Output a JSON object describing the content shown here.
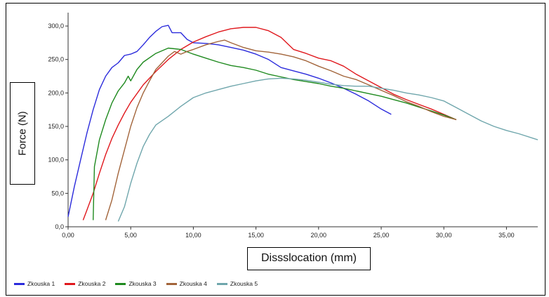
{
  "chart_data": {
    "type": "line",
    "title": "",
    "xlabel": "Dissslocation (mm)",
    "ylabel": "Force (N)",
    "xlim": [
      0,
      37.5
    ],
    "ylim": [
      0,
      320
    ],
    "grid": false,
    "legend_position": "bottom-left",
    "x_ticks": [
      "0,00",
      "5,00",
      "10,00",
      "15,00",
      "20,00",
      "25,00",
      "30,00",
      "35,00"
    ],
    "x_tick_values": [
      0,
      5,
      10,
      15,
      20,
      25,
      30,
      35
    ],
    "y_ticks": [
      "0,0",
      "50,0",
      "100,0",
      "150,0",
      "200,0",
      "250,0",
      "300,0"
    ],
    "y_tick_values": [
      0,
      50,
      100,
      150,
      200,
      250,
      300
    ],
    "series": [
      {
        "name": "Zkouska 1",
        "color": "#2b2bdc",
        "x": [
          0,
          0.5,
          1.0,
          1.5,
          2.0,
          2.5,
          3.0,
          3.5,
          4.0,
          4.5,
          5.0,
          5.5,
          6.0,
          6.5,
          7.0,
          7.5,
          8.0,
          8.3,
          9.0,
          9.5,
          10.0,
          11.0,
          12.0,
          13.0,
          14.0,
          15.0,
          16.0,
          17.0,
          18.0,
          19.0,
          20.0,
          21.0,
          22.0,
          23.0,
          24.0,
          25.0,
          25.8
        ],
        "y": [
          15,
          60,
          100,
          140,
          175,
          205,
          225,
          238,
          245,
          256,
          258,
          262,
          272,
          283,
          292,
          299,
          301,
          290,
          290,
          280,
          275,
          274,
          272,
          268,
          264,
          258,
          250,
          238,
          233,
          228,
          222,
          215,
          207,
          198,
          188,
          176,
          168
        ]
      },
      {
        "name": "Zkouska 2",
        "color": "#e0181d",
        "x": [
          1.2,
          1.5,
          2.0,
          2.5,
          3.0,
          3.5,
          4.0,
          4.5,
          5.0,
          6.0,
          7.0,
          8.0,
          9.0,
          10.0,
          11.0,
          12.0,
          13.0,
          14.0,
          15.0,
          16.0,
          17.0,
          18.0,
          19.0,
          20.0,
          21.0,
          22.0,
          23.0,
          24.0,
          25.0,
          26.0,
          27.0,
          28.0,
          29.0,
          30.0,
          31.0
        ],
        "y": [
          10,
          25,
          50,
          80,
          108,
          132,
          152,
          170,
          186,
          212,
          232,
          250,
          265,
          276,
          284,
          291,
          296,
          298,
          298,
          293,
          283,
          265,
          259,
          252,
          248,
          240,
          228,
          218,
          208,
          198,
          190,
          183,
          176,
          168,
          160
        ]
      },
      {
        "name": "Zkouska 3",
        "color": "#1f8a1f",
        "x": [
          2.0,
          2.05,
          2.1,
          2.5,
          3.0,
          3.5,
          4.0,
          4.5,
          4.8,
          5.0,
          5.5,
          6.0,
          7.0,
          8.0,
          9.0,
          10.0,
          11.0,
          12.0,
          13.0,
          14.0,
          15.0,
          16.0,
          17.0,
          18.0,
          19.0,
          20.0,
          21.0,
          22.0,
          23.0,
          24.0,
          25.0,
          26.0,
          27.0,
          28.0,
          29.0,
          30.0,
          31.0
        ],
        "y": [
          10,
          50,
          90,
          130,
          160,
          185,
          203,
          215,
          225,
          218,
          235,
          246,
          259,
          267,
          265,
          258,
          252,
          246,
          241,
          238,
          234,
          228,
          224,
          220,
          217,
          214,
          210,
          207,
          203,
          199,
          195,
          190,
          185,
          179,
          173,
          167,
          160
        ]
      },
      {
        "name": "Zkouska 4",
        "color": "#a2643a",
        "x": [
          3.0,
          3.5,
          4.0,
          4.5,
          5.0,
          5.5,
          6.0,
          6.5,
          7.0,
          7.5,
          8.0,
          8.5,
          9.0,
          9.5,
          10.0,
          11.0,
          12.0,
          12.5,
          13.0,
          14.0,
          15.0,
          16.0,
          17.0,
          18.0,
          19.0,
          20.0,
          21.0,
          22.0,
          23.0,
          24.0,
          25.0,
          26.0,
          27.0,
          28.0,
          29.0,
          30.0,
          31.0
        ],
        "y": [
          10,
          40,
          80,
          115,
          150,
          178,
          200,
          218,
          235,
          245,
          255,
          262,
          258,
          262,
          265,
          272,
          277,
          279,
          275,
          268,
          263,
          261,
          258,
          254,
          248,
          240,
          233,
          225,
          220,
          212,
          204,
          196,
          187,
          180,
          172,
          165,
          160
        ]
      },
      {
        "name": "Zkouska 5",
        "color": "#6fa6ac",
        "x": [
          4.0,
          4.5,
          5.0,
          5.5,
          6.0,
          6.5,
          7.0,
          8.0,
          9.0,
          10.0,
          11.0,
          12.0,
          13.0,
          14.0,
          15.0,
          16.0,
          17.0,
          18.0,
          19.0,
          20.0,
          21.0,
          22.0,
          23.0,
          24.0,
          25.0,
          26.0,
          27.0,
          28.0,
          29.0,
          30.0,
          31.0,
          32.0,
          33.0,
          34.0,
          35.0,
          36.0,
          37.5
        ],
        "y": [
          8,
          30,
          65,
          95,
          120,
          138,
          152,
          165,
          180,
          193,
          200,
          205,
          210,
          214,
          218,
          221,
          222,
          221,
          219,
          216,
          213,
          211,
          210,
          210,
          207,
          204,
          200,
          197,
          193,
          188,
          178,
          168,
          158,
          150,
          144,
          139,
          130
        ]
      }
    ]
  }
}
